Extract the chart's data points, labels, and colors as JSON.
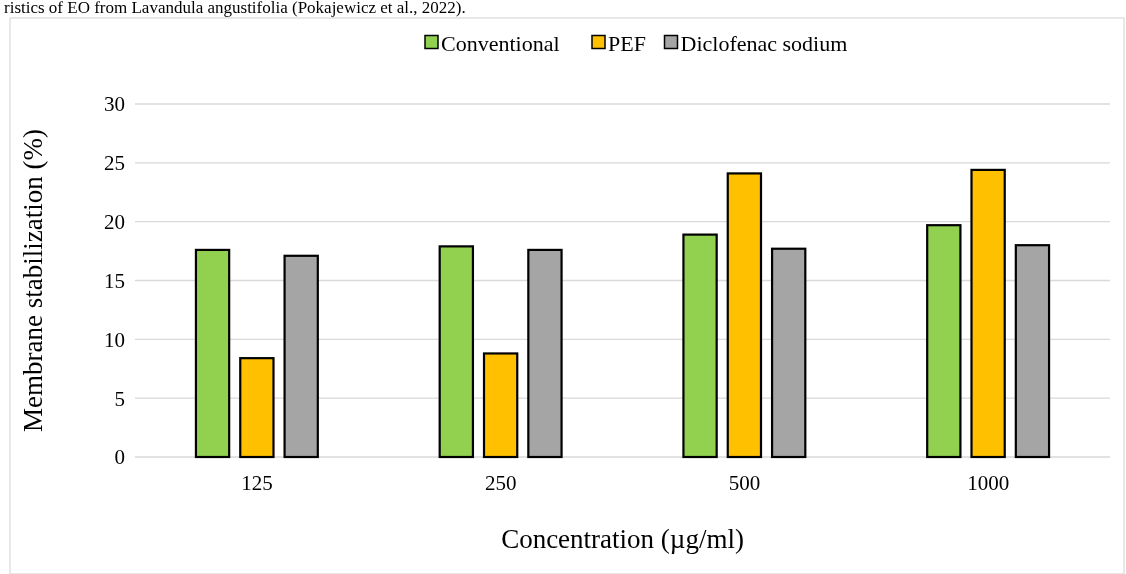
{
  "chart_data": {
    "type": "bar",
    "annotations": [
      "ristics of EO from Lavandula angustifolia (Pokajewicz et al., 2022)."
    ],
    "xlabel": "Concentration (µg/ml)",
    "ylabel": "Membrane stabilization (%)",
    "categories": [
      "125",
      "250",
      "500",
      "1000"
    ],
    "series": [
      {
        "name": "Conventional",
        "color": "#92d050",
        "values": [
          17.6,
          17.9,
          18.9,
          19.7
        ]
      },
      {
        "name": "PEF",
        "color": "#ffc000",
        "values": [
          8.4,
          8.8,
          24.1,
          24.4
        ]
      },
      {
        "name": "Diclofenac sodium",
        "color": "#a5a5a5",
        "values": [
          17.1,
          17.6,
          17.7,
          18.0
        ]
      }
    ],
    "ylim": [
      0,
      30
    ],
    "yticks": [
      0,
      5,
      10,
      15,
      20,
      25,
      30
    ],
    "grid": "y",
    "legend": "top"
  }
}
